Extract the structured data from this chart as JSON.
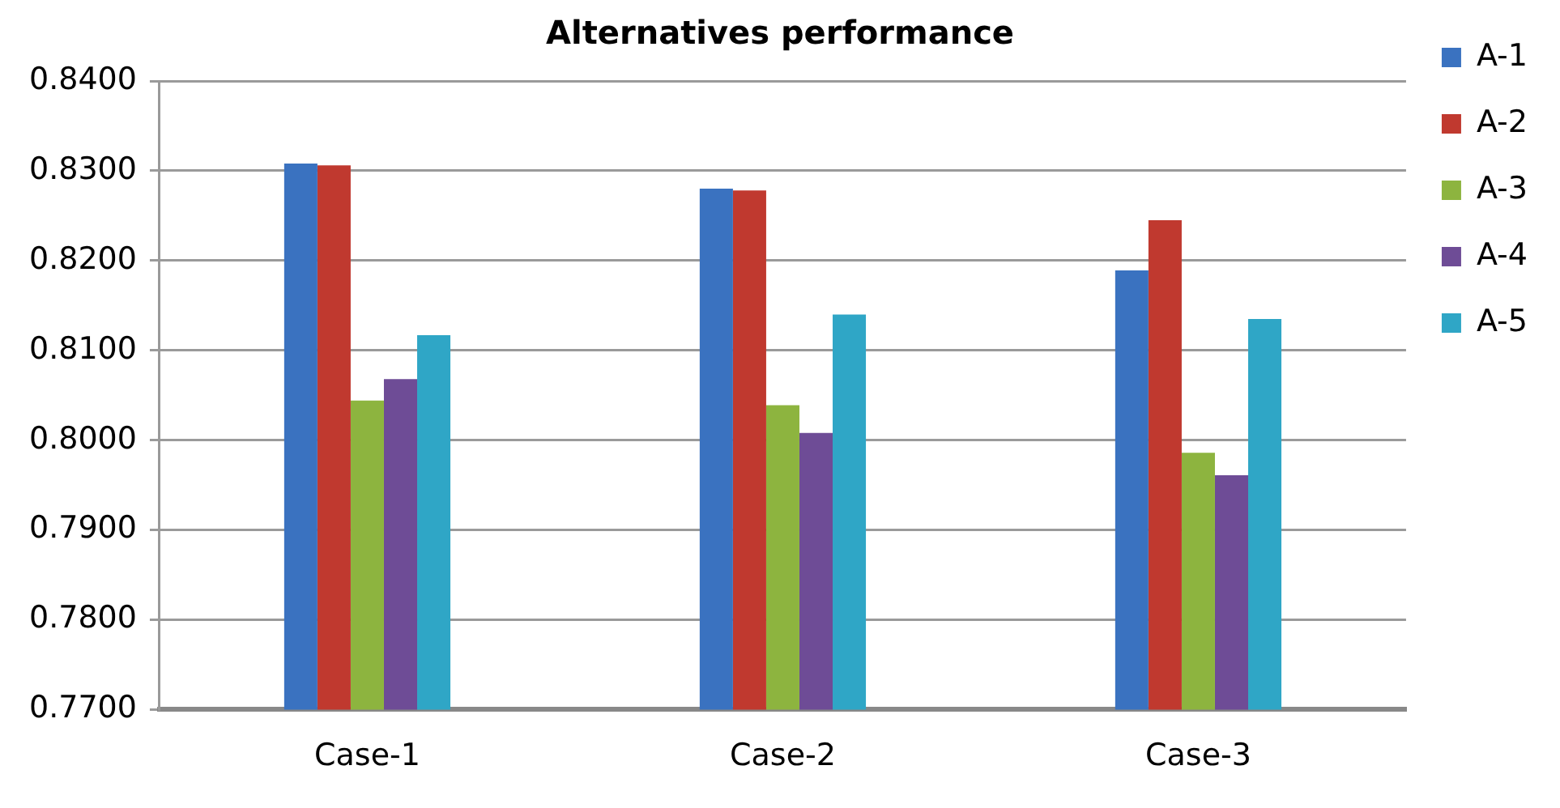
{
  "chart_data": {
    "type": "bar",
    "title": "Alternatives performance",
    "categories": [
      "Case-1",
      "Case-2",
      "Case-3"
    ],
    "series": [
      {
        "name": "A-1",
        "color": "#3a72c0",
        "values": [
          0.8308,
          0.828,
          0.8189
        ]
      },
      {
        "name": "A-2",
        "color": "#c0392f",
        "values": [
          0.8306,
          0.8278,
          0.8245
        ]
      },
      {
        "name": "A-3",
        "color": "#8db43f",
        "values": [
          0.8044,
          0.8039,
          0.7986
        ]
      },
      {
        "name": "A-4",
        "color": "#6e4c96",
        "values": [
          0.8068,
          0.8008,
          0.7961
        ]
      },
      {
        "name": "A-5",
        "color": "#2fa6c6",
        "values": [
          0.8117,
          0.814,
          0.8135
        ]
      }
    ],
    "ylim": [
      0.77,
      0.84
    ],
    "yticks": [
      {
        "value": 0.77,
        "label": "0.7700"
      },
      {
        "value": 0.78,
        "label": "0.7800"
      },
      {
        "value": 0.79,
        "label": "0.7900"
      },
      {
        "value": 0.8,
        "label": "0.8000"
      },
      {
        "value": 0.81,
        "label": "0.8100"
      },
      {
        "value": 0.82,
        "label": "0.8200"
      },
      {
        "value": 0.83,
        "label": "0.8300"
      },
      {
        "value": 0.84,
        "label": "0.8400"
      }
    ],
    "grid": "y",
    "legend": "right"
  }
}
